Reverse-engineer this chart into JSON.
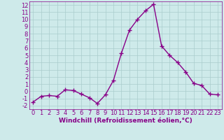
{
  "x": [
    0,
    1,
    2,
    3,
    4,
    5,
    6,
    7,
    8,
    9,
    10,
    11,
    12,
    13,
    14,
    15,
    16,
    17,
    18,
    19,
    20,
    21,
    22,
    23
  ],
  "y": [
    -1.5,
    -0.7,
    -0.6,
    -0.7,
    0.2,
    0.1,
    -0.4,
    -0.9,
    -1.7,
    -0.5,
    1.5,
    5.3,
    8.5,
    10.0,
    11.2,
    12.1,
    6.3,
    5.0,
    4.0,
    2.7,
    1.1,
    0.8,
    -0.4,
    -0.5
  ],
  "line_color": "#880088",
  "marker": "+",
  "marker_size": 4,
  "marker_linewidth": 1.0,
  "line_width": 1.0,
  "bg_color": "#ceeaea",
  "grid_color": "#aacccc",
  "xlabel": "Windchill (Refroidissement éolien,°C)",
  "xlabel_color": "#880088",
  "tick_color": "#880088",
  "ylim": [
    -2.5,
    12.5
  ],
  "xlim": [
    -0.5,
    23.5
  ],
  "yticks": [
    -2,
    -1,
    0,
    1,
    2,
    3,
    4,
    5,
    6,
    7,
    8,
    9,
    10,
    11,
    12
  ],
  "xticks": [
    0,
    1,
    2,
    3,
    4,
    5,
    6,
    7,
    8,
    9,
    10,
    11,
    12,
    13,
    14,
    15,
    16,
    17,
    18,
    19,
    20,
    21,
    22,
    23
  ],
  "font_size": 6.0,
  "xlabel_fontsize": 6.5
}
